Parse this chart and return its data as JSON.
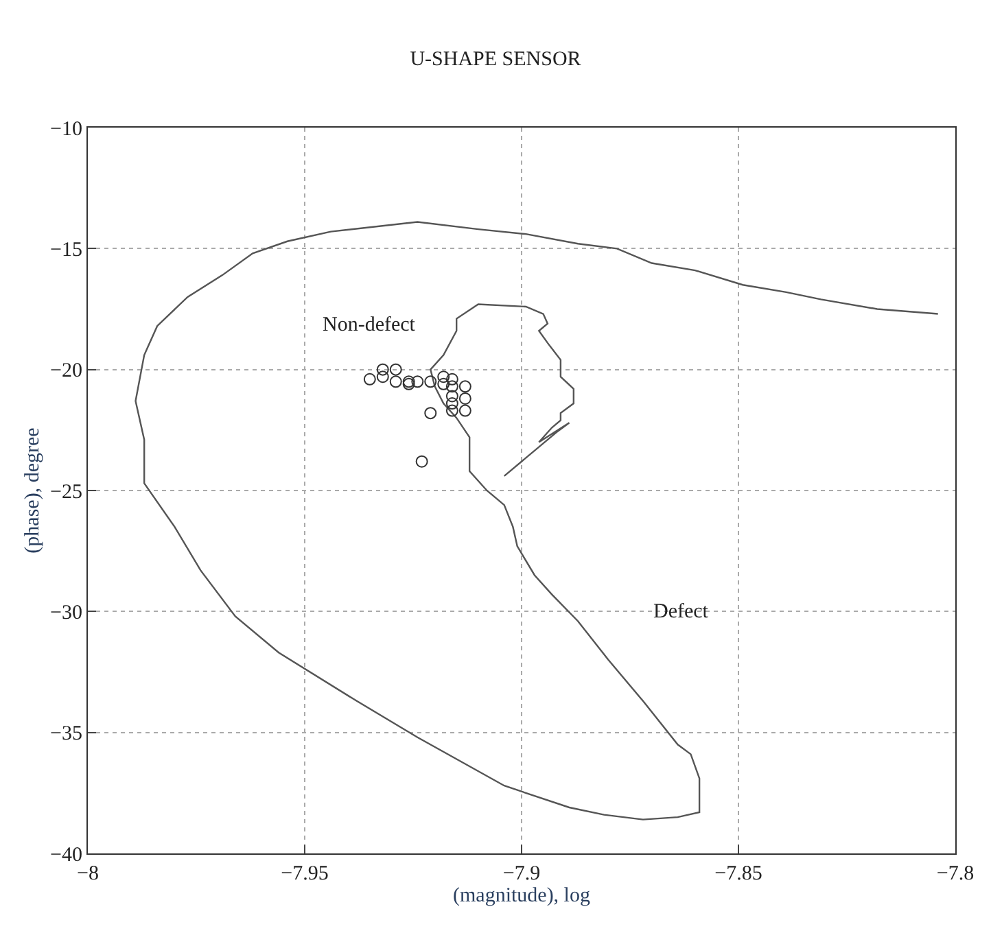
{
  "chart_data": {
    "type": "line",
    "title": "U-SHAPE SENSOR",
    "xlabel": "(magnitude), log",
    "ylabel": "(phase), degree",
    "xlim": [
      -8,
      -7.8
    ],
    "xticks": [
      -8,
      -7.95,
      -7.9,
      -7.85,
      -7.8
    ],
    "ylim": [
      -40,
      -10
    ],
    "yticks": [
      -40,
      -35,
      -30,
      -25,
      -20,
      -15,
      -10
    ],
    "grid": true,
    "series": [
      {
        "color": "#555555",
        "marker": "none",
        "x": [
          -7.804,
          -7.818,
          -7.831,
          -7.839,
          -7.849,
          -7.86,
          -7.87,
          -7.878,
          -7.887,
          -7.899,
          -7.91,
          -7.924,
          -7.944,
          -7.954,
          -7.962,
          -7.969,
          -7.977,
          -7.984,
          -7.987,
          -7.989,
          -7.987,
          -7.987,
          -7.98,
          -7.974,
          -7.966,
          -7.956,
          -7.938,
          -7.924,
          -7.904,
          -7.889,
          -7.881,
          -7.872,
          -7.864,
          -7.859,
          -7.859,
          -7.861,
          -7.864,
          -7.872,
          -7.88,
          -7.887,
          -7.893,
          -7.897,
          -7.901,
          -7.902,
          -7.904,
          -7.908,
          -7.912,
          -7.912,
          -7.915,
          -7.918,
          -7.92,
          -7.921,
          -7.918,
          -7.915,
          -7.915,
          -7.91,
          -7.899,
          -7.895,
          -7.894,
          -7.896,
          -7.894,
          -7.891,
          -7.891,
          -7.888,
          -7.888,
          -7.891,
          -7.891,
          -7.893,
          -7.896,
          -7.889,
          -7.892,
          -7.904
        ],
        "values": [
          -17.7,
          -17.5,
          -17.1,
          -16.8,
          -16.5,
          -15.9,
          -15.6,
          -15.0,
          -14.8,
          -14.4,
          -14.2,
          -13.9,
          -14.3,
          -14.7,
          -15.2,
          -16.1,
          -17.0,
          -18.2,
          -19.4,
          -21.3,
          -22.9,
          -24.7,
          -26.5,
          -28.3,
          -30.2,
          -31.7,
          -33.7,
          -35.2,
          -37.2,
          -38.1,
          -38.4,
          -38.6,
          -38.5,
          -38.3,
          -36.9,
          -35.9,
          -35.5,
          -33.7,
          -32.0,
          -30.4,
          -29.3,
          -28.5,
          -27.3,
          -26.5,
          -25.6,
          -25.0,
          -24.2,
          -22.8,
          -22.0,
          -21.4,
          -20.7,
          -20.0,
          -19.4,
          -18.4,
          -17.9,
          -17.3,
          -17.4,
          -17.7,
          -18.1,
          -18.4,
          -18.9,
          -19.6,
          -20.3,
          -20.8,
          -21.4,
          -21.8,
          -22.1,
          -22.4,
          -23.0,
          -22.2,
          -22.6,
          -24.4
        ]
      },
      {
        "type": "scatter",
        "color": "#333333",
        "marker": "circle",
        "x": [
          -7.935,
          -7.932,
          -7.932,
          -7.929,
          -7.929,
          -7.926,
          -7.926,
          -7.924,
          -7.921,
          -7.918,
          -7.918,
          -7.916,
          -7.916,
          -7.916,
          -7.916,
          -7.916,
          -7.913,
          -7.913,
          -7.913,
          -7.921,
          -7.923
        ],
        "values": [
          -20.4,
          -20.0,
          -20.3,
          -20.0,
          -20.5,
          -20.5,
          -20.6,
          -20.5,
          -20.5,
          -20.3,
          -20.6,
          -20.4,
          -20.7,
          -21.1,
          -21.4,
          -21.7,
          -20.7,
          -21.2,
          -21.7,
          -21.8,
          -23.8
        ]
      }
    ],
    "annotations": [
      "Non-defect",
      "Defect"
    ]
  }
}
